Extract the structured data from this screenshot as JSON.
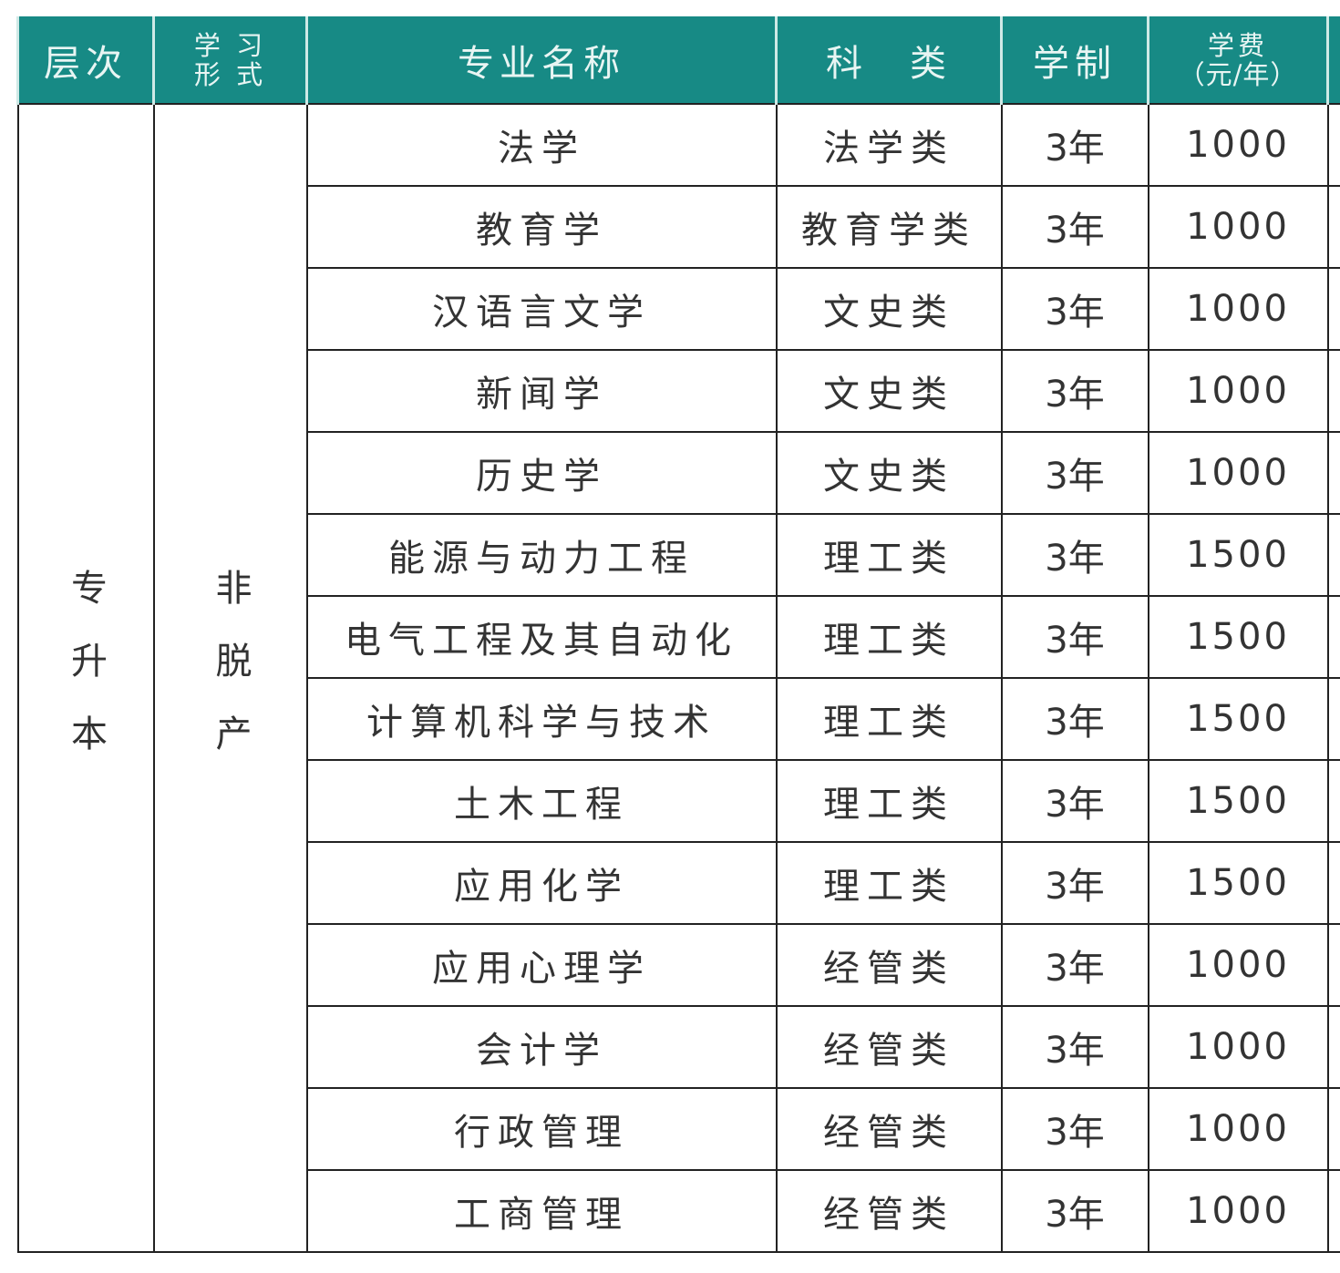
{
  "headers": [
    "层次",
    "学习形式",
    "专业名称",
    "科类",
    "学制",
    "学费（元/年）"
  ],
  "header_lines": {
    "form": [
      "学 习",
      "形 式"
    ],
    "fee": [
      "学费",
      "（元/年）"
    ],
    "category": "科　类"
  },
  "level": "专升本",
  "form": "非脱产",
  "rows": [
    {
      "major": "法学",
      "category": "法学类",
      "duration": "3年",
      "fee": "1000"
    },
    {
      "major": "教育学",
      "category": "教育学类",
      "duration": "3年",
      "fee": "1000"
    },
    {
      "major": "汉语言文学",
      "category": "文史类",
      "duration": "3年",
      "fee": "1000"
    },
    {
      "major": "新闻学",
      "category": "文史类",
      "duration": "3年",
      "fee": "1000"
    },
    {
      "major": "历史学",
      "category": "文史类",
      "duration": "3年",
      "fee": "1000"
    },
    {
      "major": "能源与动力工程",
      "category": "理工类",
      "duration": "3年",
      "fee": "1500"
    },
    {
      "major": "电气工程及其自动化",
      "category": "理工类",
      "duration": "3年",
      "fee": "1500"
    },
    {
      "major": "计算机科学与技术",
      "category": "理工类",
      "duration": "3年",
      "fee": "1500"
    },
    {
      "major": "土木工程",
      "category": "理工类",
      "duration": "3年",
      "fee": "1500"
    },
    {
      "major": "应用化学",
      "category": "理工类",
      "duration": "3年",
      "fee": "1500"
    },
    {
      "major": "应用心理学",
      "category": "经管类",
      "duration": "3年",
      "fee": "1000"
    },
    {
      "major": "会计学",
      "category": "经管类",
      "duration": "3年",
      "fee": "1000"
    },
    {
      "major": "行政管理",
      "category": "经管类",
      "duration": "3年",
      "fee": "1000"
    },
    {
      "major": "工商管理",
      "category": "经管类",
      "duration": "3年",
      "fee": "1000"
    }
  ],
  "colors": {
    "header_bg": "#178a85",
    "header_text": "#e8f5f3"
  }
}
